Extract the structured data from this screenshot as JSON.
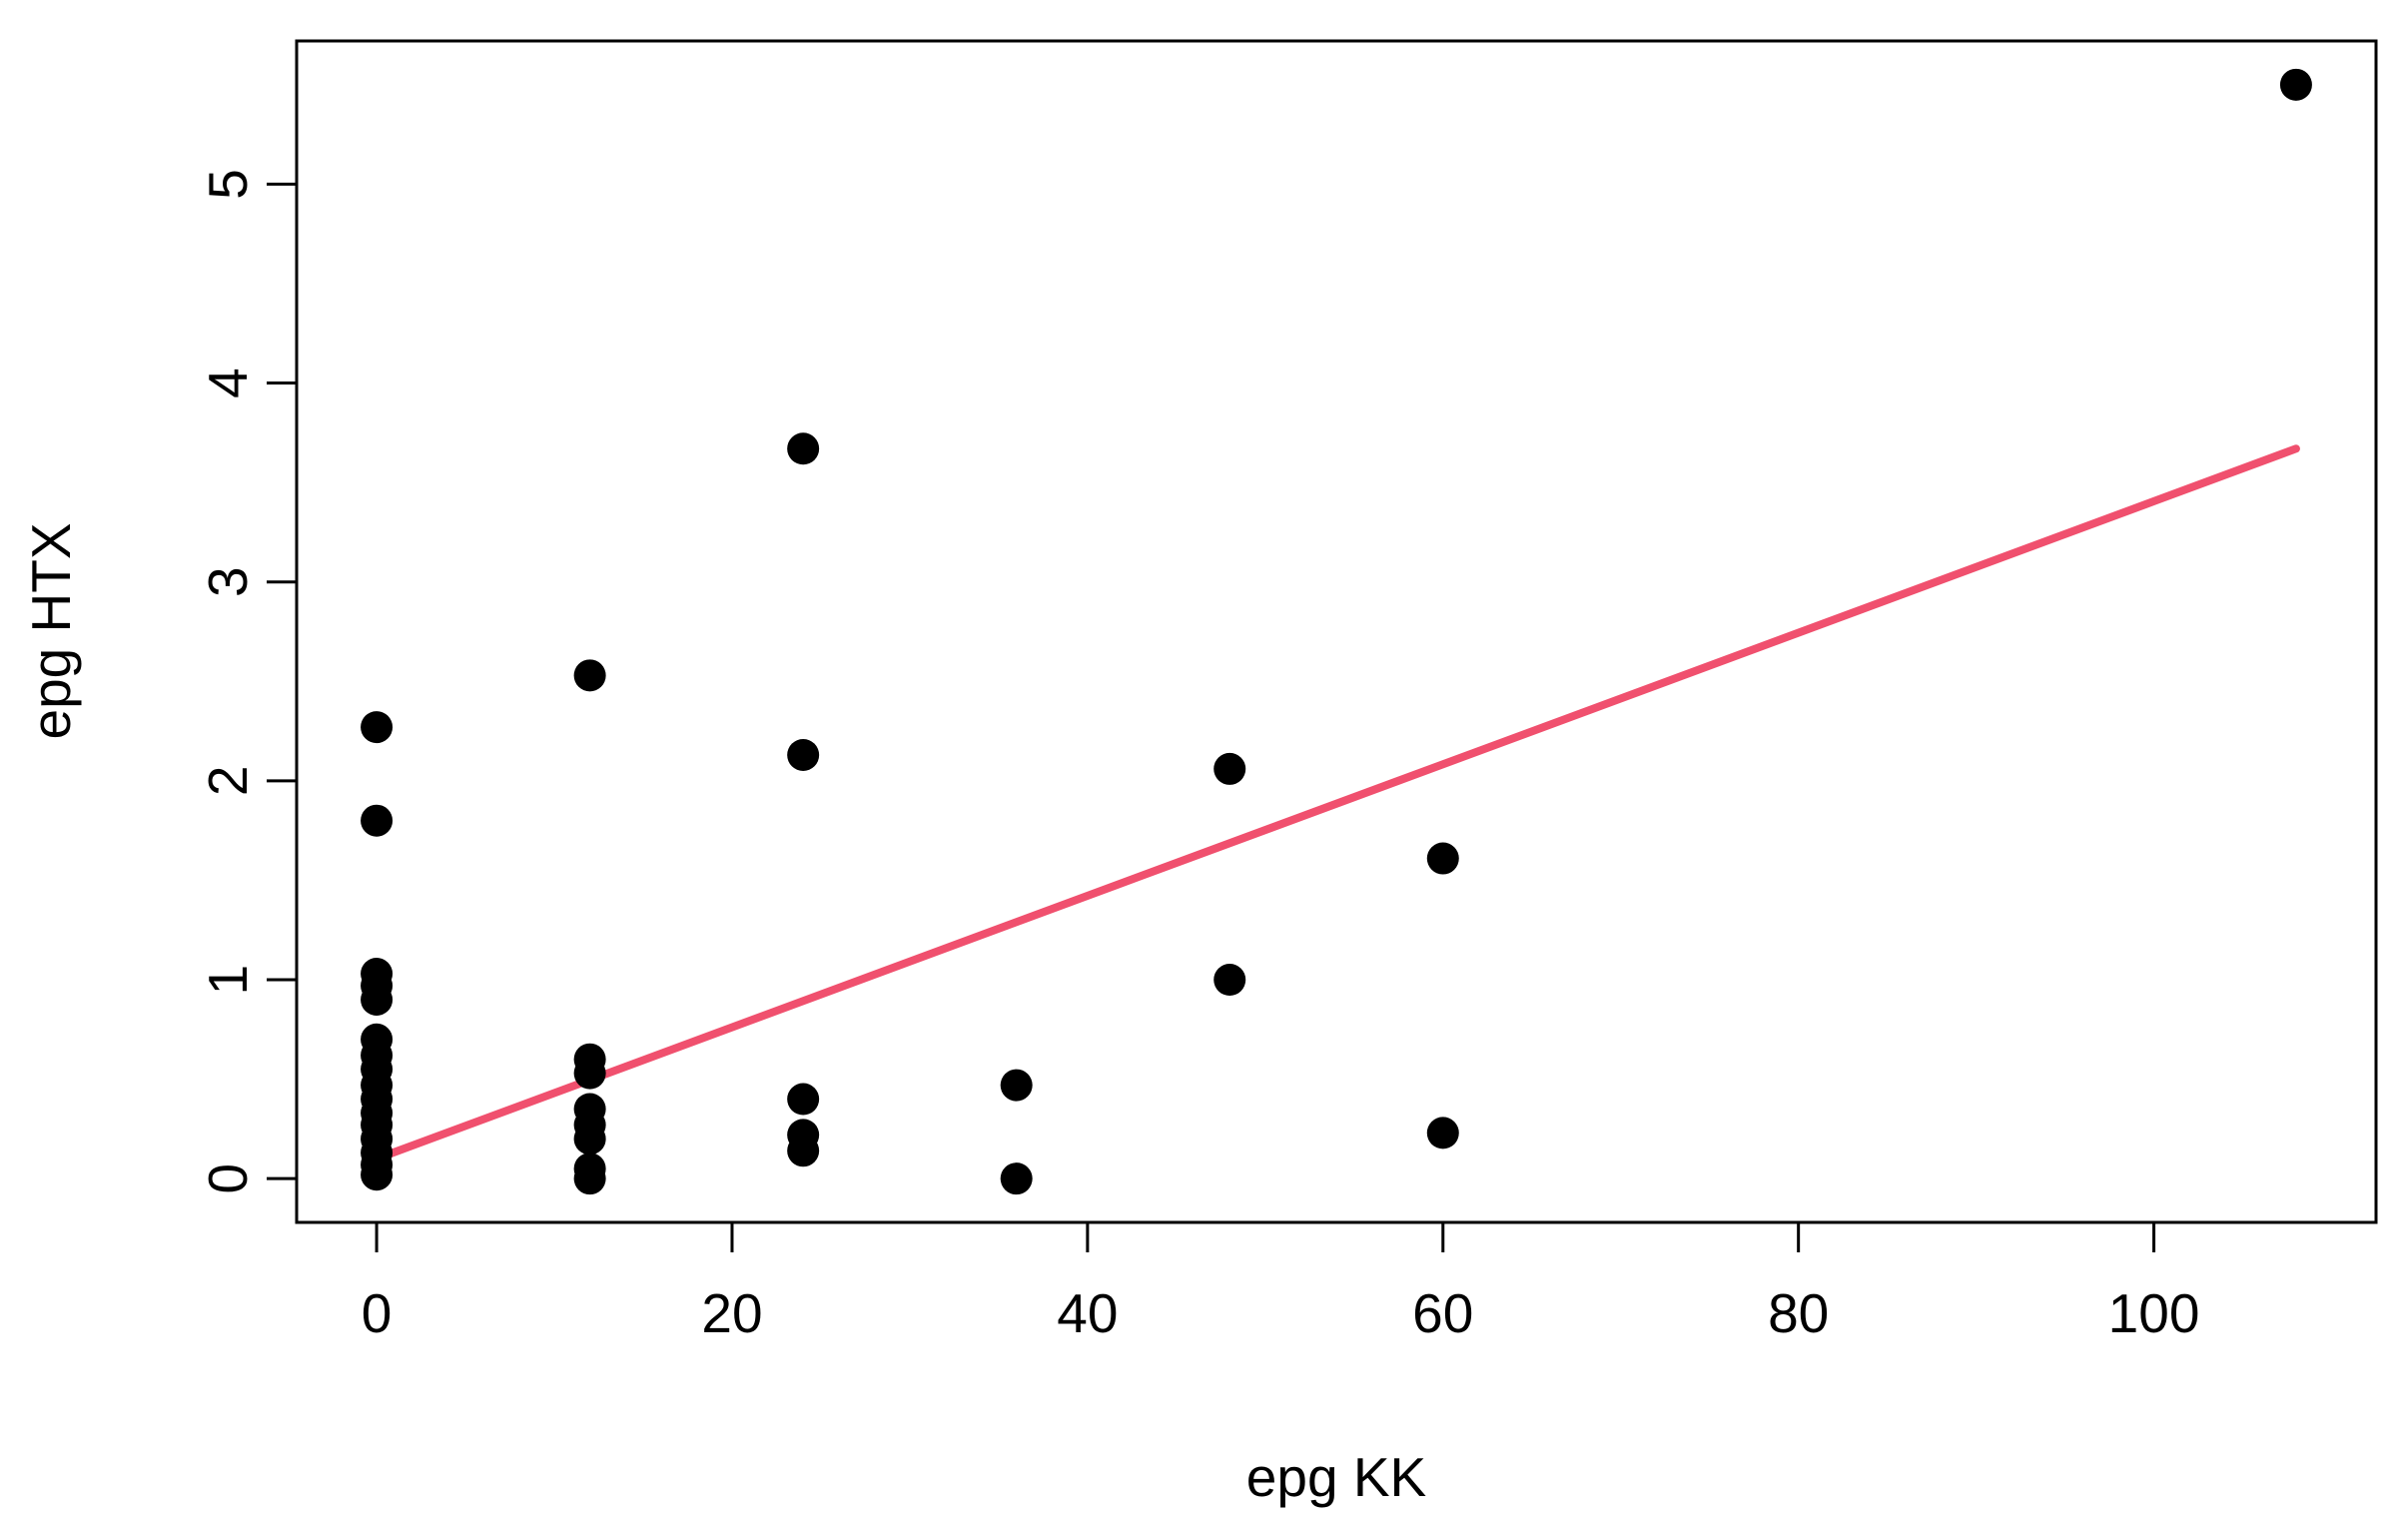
{
  "chart_data": {
    "type": "scatter",
    "title": "",
    "xlabel": "epg KK",
    "ylabel": "epg HTX",
    "xlim": [
      -4.5,
      112.5
    ],
    "ylim": [
      -0.22,
      5.72
    ],
    "grid": false,
    "legend": "none",
    "x_ticks": [
      0,
      20,
      40,
      60,
      80,
      100
    ],
    "x_tick_labels": [
      "0",
      "20",
      "40",
      "60",
      "80",
      "100"
    ],
    "y_ticks": [
      0,
      1,
      2,
      3,
      4,
      5
    ],
    "y_tick_labels": [
      "0",
      "1",
      "2",
      "3",
      "4",
      "5"
    ],
    "point_color": "#000000",
    "line_color": "#f0506e",
    "points": [
      {
        "x": 0,
        "y": 2.27
      },
      {
        "x": 0,
        "y": 1.8
      },
      {
        "x": 0,
        "y": 1.03
      },
      {
        "x": 0,
        "y": 0.97
      },
      {
        "x": 0,
        "y": 0.9
      },
      {
        "x": 0,
        "y": 0.7
      },
      {
        "x": 0,
        "y": 0.62
      },
      {
        "x": 0,
        "y": 0.55
      },
      {
        "x": 0,
        "y": 0.47
      },
      {
        "x": 0,
        "y": 0.4
      },
      {
        "x": 0,
        "y": 0.33
      },
      {
        "x": 0,
        "y": 0.27
      },
      {
        "x": 0,
        "y": 0.2
      },
      {
        "x": 0,
        "y": 0.13
      },
      {
        "x": 0,
        "y": 0.07
      },
      {
        "x": 0,
        "y": 0.02
      },
      {
        "x": 12,
        "y": 2.53
      },
      {
        "x": 12,
        "y": 0.6
      },
      {
        "x": 12,
        "y": 0.53
      },
      {
        "x": 12,
        "y": 0.35
      },
      {
        "x": 12,
        "y": 0.27
      },
      {
        "x": 12,
        "y": 0.2
      },
      {
        "x": 12,
        "y": 0.05
      },
      {
        "x": 12,
        "y": 0.0
      },
      {
        "x": 24,
        "y": 3.67
      },
      {
        "x": 24,
        "y": 2.13
      },
      {
        "x": 24,
        "y": 0.4
      },
      {
        "x": 24,
        "y": 0.22
      },
      {
        "x": 24,
        "y": 0.14
      },
      {
        "x": 36,
        "y": 0.47
      },
      {
        "x": 36,
        "y": 0.0
      },
      {
        "x": 48,
        "y": 2.06
      },
      {
        "x": 48,
        "y": 1.0
      },
      {
        "x": 60,
        "y": 1.61
      },
      {
        "x": 60,
        "y": 0.23
      },
      {
        "x": 108,
        "y": 5.5
      }
    ],
    "fit_line": {
      "x": [
        0,
        108
      ],
      "y": [
        0.1,
        3.67
      ]
    }
  }
}
